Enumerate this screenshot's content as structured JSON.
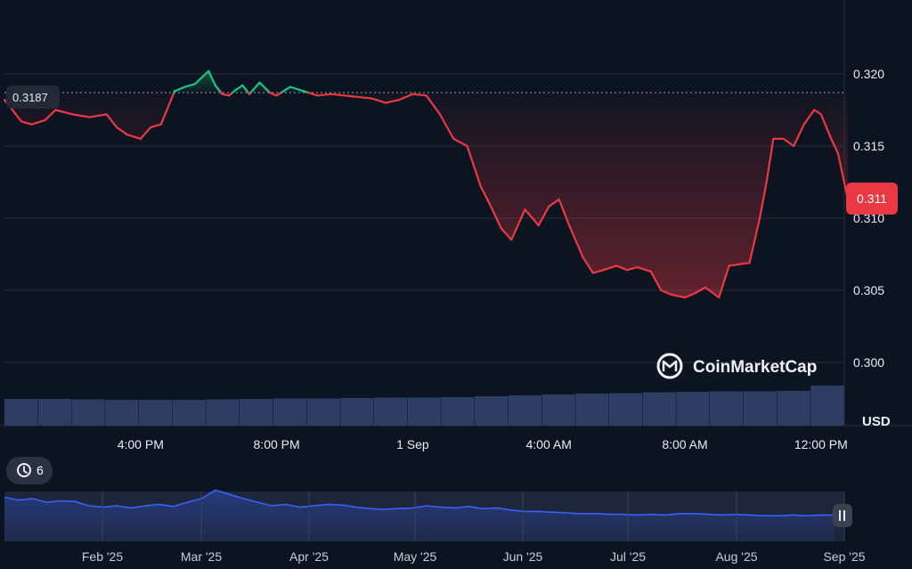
{
  "chart_data": {
    "type": "line",
    "unit": "USD",
    "reference_price": "0.3187",
    "current_price": "0.311",
    "y_ticks": [
      "0.320",
      "0.315",
      "0.310",
      "0.305",
      "0.300"
    ],
    "y_tick_values": [
      0.32,
      0.315,
      0.31,
      0.305,
      0.3
    ],
    "x_ticks": [
      "4:00 PM",
      "8:00 PM",
      "1 Sep",
      "4:00 AM",
      "8:00 AM",
      "12:00 PM"
    ],
    "x_tick_hours": [
      4,
      8,
      12,
      16,
      20,
      24
    ],
    "series": [
      {
        "hours": [
          0,
          0.5,
          0.8,
          1.2,
          1.5,
          2,
          2.5,
          3,
          3.3,
          3.6,
          4,
          4.3,
          4.6,
          5,
          5.3,
          5.6,
          6,
          6.2,
          6.4,
          6.6,
          6.8,
          7,
          7.2,
          7.5,
          7.8,
          8,
          8.4,
          8.8,
          9.2,
          9.6,
          10,
          10.4,
          10.8,
          11.2,
          11.6,
          12,
          12.4,
          12.8,
          13.2,
          13.6,
          14,
          14.3,
          14.6,
          14.9,
          15.3,
          15.7,
          16,
          16.3,
          16.6,
          17,
          17.3,
          17.6,
          18,
          18.3,
          18.6,
          19,
          19.3,
          19.6,
          20,
          20.3,
          20.6,
          21,
          21.3,
          21.6,
          21.9,
          22.2,
          22.4,
          22.6,
          22.9,
          23.2,
          23.5,
          23.8,
          24,
          24.3,
          24.5,
          24.8
        ],
        "values": [
          0.3182,
          0.3167,
          0.3165,
          0.3168,
          0.3175,
          0.3172,
          0.317,
          0.3172,
          0.3163,
          0.3158,
          0.3155,
          0.3163,
          0.3165,
          0.3188,
          0.3191,
          0.3193,
          0.3202,
          0.3192,
          0.3186,
          0.3185,
          0.3189,
          0.3192,
          0.3186,
          0.3194,
          0.3187,
          0.3185,
          0.3191,
          0.3188,
          0.3185,
          0.3186,
          0.3185,
          0.3184,
          0.3183,
          0.318,
          0.3182,
          0.3186,
          0.3185,
          0.3172,
          0.3155,
          0.315,
          0.3122,
          0.3108,
          0.3093,
          0.3085,
          0.3106,
          0.3095,
          0.3108,
          0.3113,
          0.3095,
          0.3073,
          0.3062,
          0.3064,
          0.3067,
          0.3064,
          0.3066,
          0.3063,
          0.305,
          0.3047,
          0.3045,
          0.3048,
          0.3052,
          0.3045,
          0.3067,
          0.3068,
          0.3069,
          0.31,
          0.3125,
          0.3155,
          0.3155,
          0.315,
          0.3165,
          0.3175,
          0.3172,
          0.3155,
          0.3145,
          0.3112
        ],
        "color_above_ref": "#16c784",
        "color_below_ref": "#ea3943"
      }
    ],
    "volume": {
      "values": [
        0.6,
        0.6,
        0.59,
        0.58,
        0.58,
        0.58,
        0.59,
        0.6,
        0.61,
        0.61,
        0.62,
        0.63,
        0.63,
        0.64,
        0.66,
        0.68,
        0.7,
        0.72,
        0.73,
        0.75,
        0.76,
        0.77,
        0.77,
        0.78,
        0.9
      ],
      "color": "#2f3c64"
    },
    "overview": {
      "x_ticks": [
        "Feb '25",
        "Mar '25",
        "Apr '25",
        "May '25",
        "Jun '25",
        "Jul '25",
        "Aug '25",
        "Sep '25"
      ],
      "values": [
        0.62,
        0.58,
        0.6,
        0.55,
        0.57,
        0.56,
        0.5,
        0.48,
        0.5,
        0.47,
        0.5,
        0.52,
        0.49,
        0.55,
        0.6,
        0.72,
        0.66,
        0.6,
        0.55,
        0.5,
        0.52,
        0.48,
        0.5,
        0.52,
        0.51,
        0.48,
        0.46,
        0.45,
        0.46,
        0.47,
        0.5,
        0.48,
        0.47,
        0.49,
        0.46,
        0.47,
        0.44,
        0.42,
        0.42,
        0.41,
        0.4,
        0.39,
        0.39,
        0.38,
        0.38,
        0.37,
        0.38,
        0.37,
        0.39,
        0.39,
        0.38,
        0.37,
        0.38,
        0.37,
        0.36,
        0.36,
        0.37,
        0.36,
        0.37,
        0.37
      ],
      "color": "#3861fb"
    },
    "events_badge": "6",
    "brand": "CoinMarketCap",
    "colors": {
      "background": "#0d1421",
      "grid": "#2a3142",
      "volume": "#2f3c64",
      "overview_fill": "#2c3450"
    }
  }
}
